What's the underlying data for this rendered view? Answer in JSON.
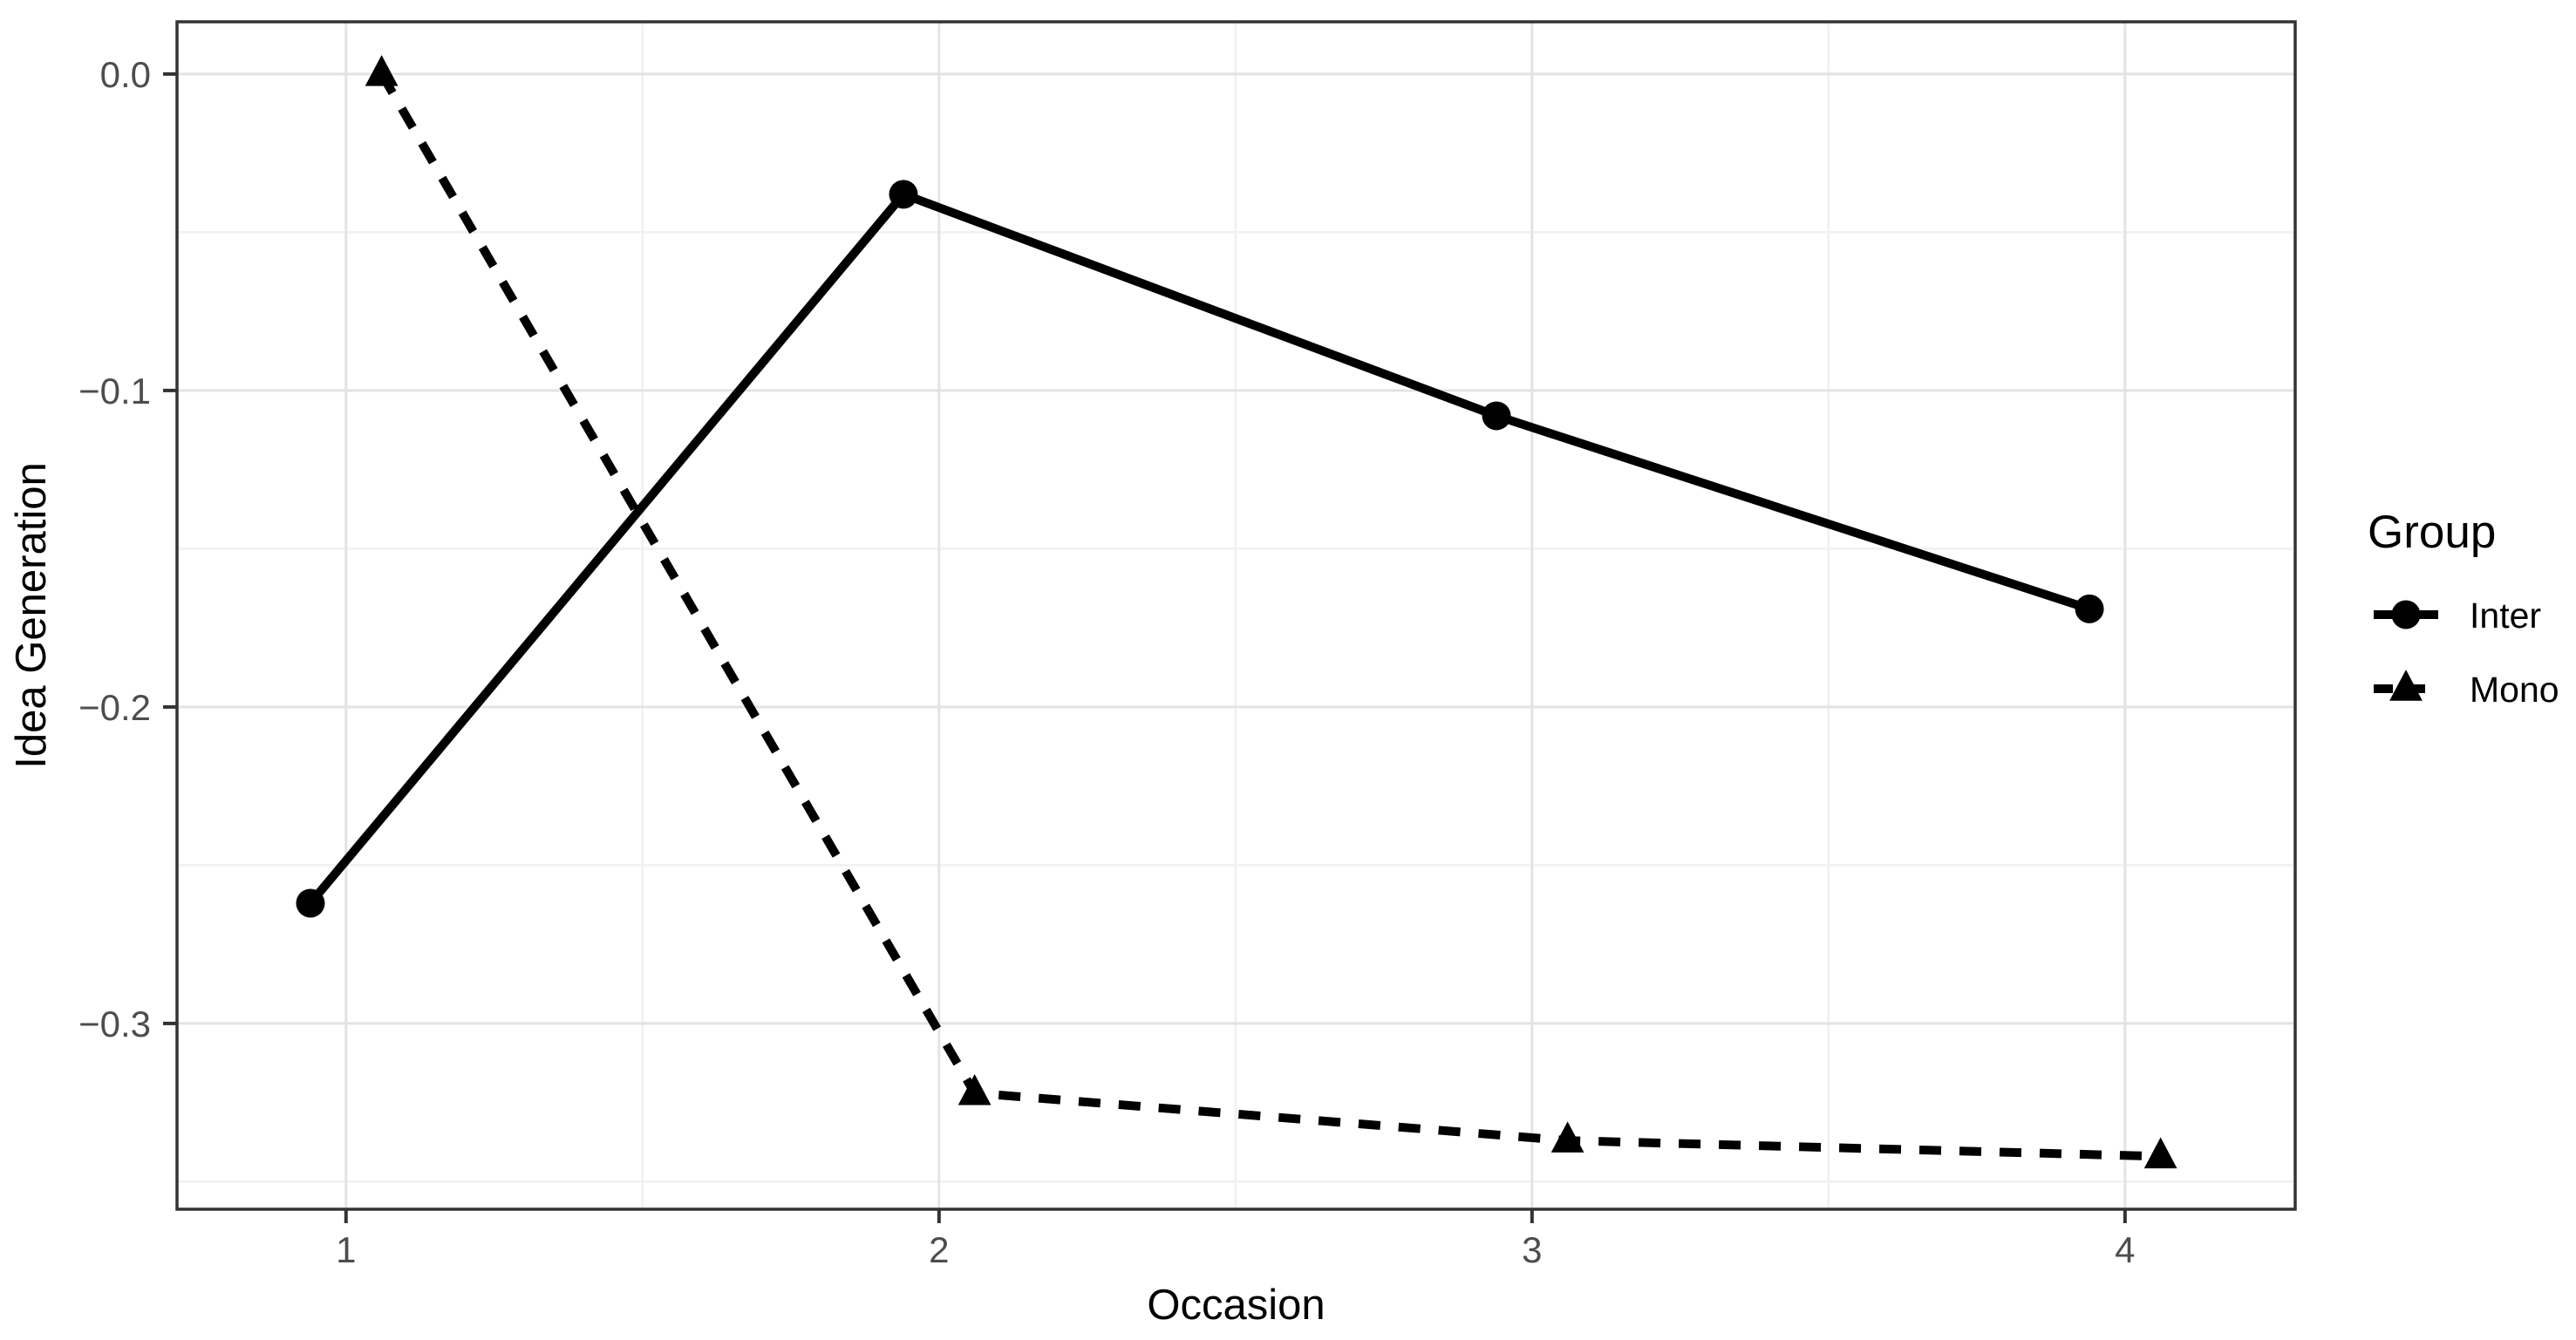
{
  "chart_data": {
    "type": "line",
    "title": "",
    "xlabel": "Occasion",
    "ylabel": "Idea Generation",
    "x_ticks": [
      1,
      2,
      3,
      4
    ],
    "x_tick_labels": [
      "1",
      "2",
      "3",
      "4"
    ],
    "x_minor_ticks": [
      1.5,
      2.5,
      3.5
    ],
    "y_ticks": [
      0,
      -0.1,
      -0.2,
      -0.3
    ],
    "y_tick_labels": [
      "0.0",
      "−0.1",
      "−0.2",
      "−0.3"
    ],
    "y_minor_ticks": [
      -0.05,
      -0.15,
      -0.25,
      -0.35
    ],
    "x_range": [
      0.715,
      4.287
    ],
    "y_range": [
      -0.3587,
      0.0165
    ],
    "grid": "major+minor",
    "legend": {
      "title": "Group",
      "position": "right",
      "entries": [
        "Inter",
        "Mono"
      ]
    },
    "series": [
      {
        "name": "Inter",
        "line": "solid",
        "marker": "circle",
        "color": "#000000",
        "occasions": [
          1,
          2,
          3,
          4
        ],
        "x": [
          0.94,
          1.94,
          2.94,
          3.94
        ],
        "y": [
          -0.262,
          -0.038,
          -0.108,
          -0.169
        ]
      },
      {
        "name": "Mono",
        "line": "dashed",
        "marker": "triangle",
        "color": "#000000",
        "occasions": [
          1,
          2,
          3,
          4
        ],
        "x": [
          1.06,
          2.06,
          3.06,
          4.06
        ],
        "y": [
          0.0,
          -0.322,
          -0.337,
          -0.342
        ]
      }
    ]
  },
  "colors": {
    "background": "#ffffff",
    "panel_background": "#ffffff",
    "grid_major": "#e3e3e3",
    "grid_minor": "#f0f0f0",
    "panel_border": "#333333",
    "axis_tick": "#333333",
    "tick_label": "#4d4d4d",
    "axis_title": "#000000",
    "legend_text": "#000000",
    "series": "#000000"
  }
}
